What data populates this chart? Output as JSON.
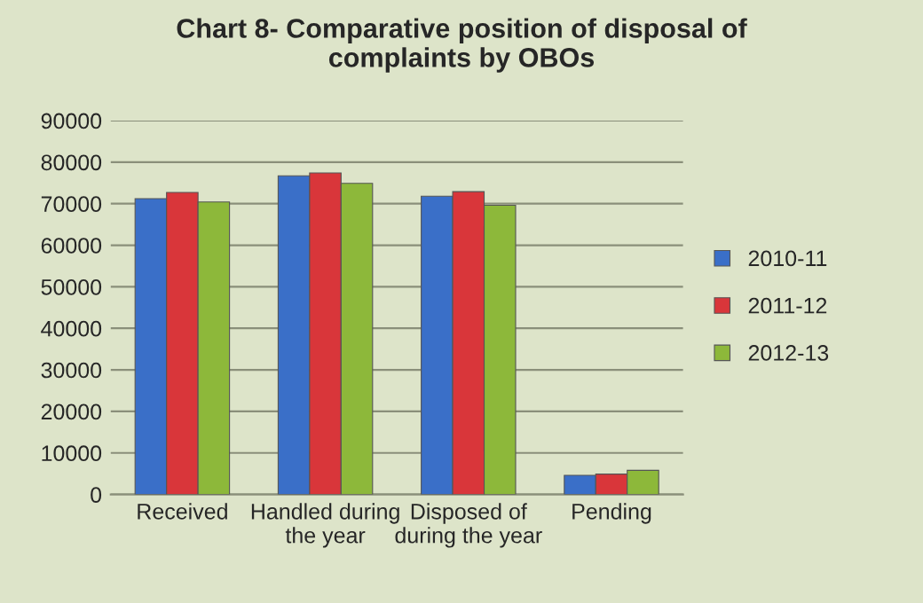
{
  "chart_data": {
    "type": "bar",
    "title": "Chart 8- Comparative position of disposal of\ncomplaints by OBOs",
    "categories": [
      "Received",
      "Handled during\nthe year",
      "Disposed of\nduring the year",
      "Pending"
    ],
    "series": [
      {
        "name": "2010-11",
        "color": "#3a6fc8",
        "values": [
          71200,
          76700,
          71800,
          4600
        ]
      },
      {
        "name": "2011-12",
        "color": "#d9363a",
        "values": [
          72700,
          77400,
          72900,
          4900
        ]
      },
      {
        "name": "2012-13",
        "color": "#8db83a",
        "values": [
          70400,
          74900,
          69600,
          5800
        ]
      }
    ],
    "ylim": [
      0,
      90000
    ],
    "yticks": [
      0,
      10000,
      20000,
      30000,
      40000,
      50000,
      60000,
      70000,
      80000,
      90000
    ],
    "grid": "y",
    "legend": "right"
  }
}
